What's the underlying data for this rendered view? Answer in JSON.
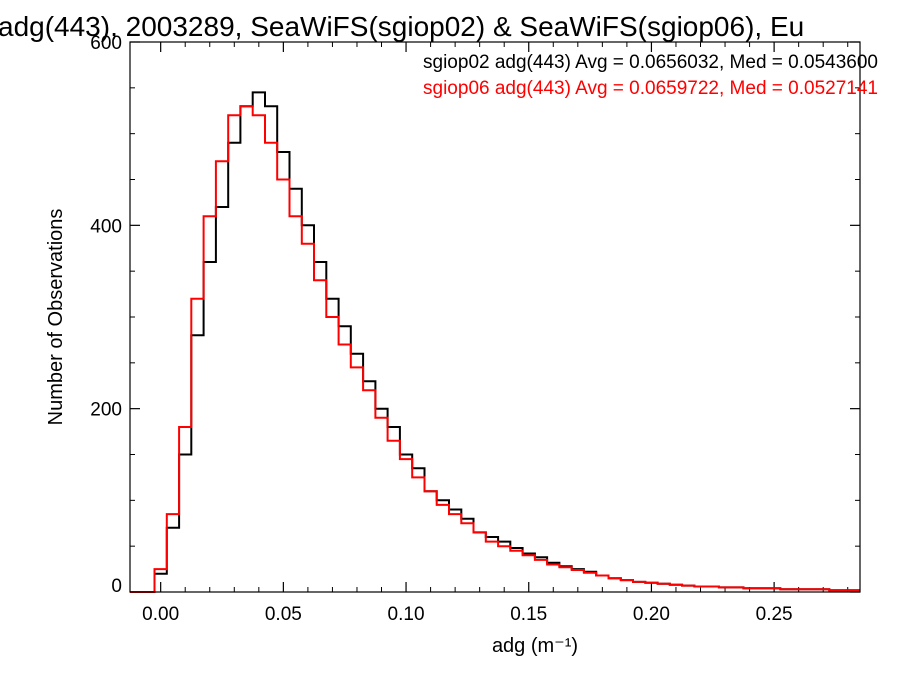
{
  "chart_data": {
    "type": "line",
    "title": "adg(443), 2003289, SeaWiFS(sgiop02) & SeaWiFS(sgiop06), Eu",
    "xlabel": "adg (m⁻¹)",
    "ylabel": "Number of Observations",
    "xlim": [
      -0.0125,
      0.285
    ],
    "ylim": [
      0,
      600
    ],
    "x_ticks": [
      0.0,
      0.05,
      0.1,
      0.15,
      0.2,
      0.25
    ],
    "x_tick_labels": [
      "0.00",
      "0.05",
      "0.10",
      "0.15",
      "0.20",
      "0.25"
    ],
    "y_ticks": [
      0,
      200,
      400,
      600
    ],
    "y_tick_labels": [
      "0",
      "200",
      "400",
      "600"
    ],
    "grid": false,
    "legend_position": "top-right",
    "x": [
      -0.01,
      -0.005,
      0.0,
      0.005,
      0.01,
      0.015,
      0.02,
      0.025,
      0.03,
      0.035,
      0.04,
      0.045,
      0.05,
      0.055,
      0.06,
      0.065,
      0.07,
      0.075,
      0.08,
      0.085,
      0.09,
      0.095,
      0.1,
      0.105,
      0.11,
      0.115,
      0.12,
      0.125,
      0.13,
      0.135,
      0.14,
      0.145,
      0.15,
      0.155,
      0.16,
      0.165,
      0.17,
      0.175,
      0.18,
      0.185,
      0.19,
      0.195,
      0.2,
      0.205,
      0.21,
      0.215,
      0.22,
      0.225,
      0.23,
      0.235,
      0.24,
      0.245,
      0.25,
      0.255,
      0.26,
      0.265,
      0.27,
      0.275,
      0.28,
      0.285
    ],
    "series": [
      {
        "name": "sgiop02",
        "color": "#000000",
        "values": [
          0,
          0,
          20,
          70,
          150,
          280,
          360,
          420,
          490,
          530,
          545,
          530,
          480,
          440,
          400,
          360,
          320,
          290,
          260,
          230,
          200,
          180,
          150,
          135,
          110,
          100,
          90,
          80,
          65,
          60,
          55,
          48,
          42,
          38,
          32,
          28,
          25,
          22,
          18,
          15,
          13,
          11,
          10,
          9,
          8,
          7,
          6,
          6,
          5,
          5,
          4,
          4,
          4,
          3,
          3,
          3,
          3,
          2,
          2,
          2
        ]
      },
      {
        "name": "sgiop06",
        "color": "#ff0000",
        "values": [
          0,
          0,
          25,
          85,
          180,
          320,
          410,
          470,
          520,
          530,
          520,
          490,
          450,
          410,
          380,
          340,
          300,
          270,
          245,
          220,
          190,
          165,
          145,
          125,
          110,
          95,
          85,
          75,
          65,
          55,
          50,
          45,
          40,
          35,
          30,
          27,
          24,
          21,
          18,
          15,
          13,
          11,
          10,
          9,
          8,
          7,
          6,
          6,
          5,
          5,
          4,
          4,
          4,
          3,
          3,
          3,
          3,
          2,
          2,
          2
        ]
      }
    ],
    "annotations": [
      {
        "text": "sgiop02 adg(443) Avg = 0.0656032, Med = 0.0543600",
        "color": "#000000"
      },
      {
        "text": "sgiop06 adg(443) Avg = 0.0659722, Med = 0.0527141",
        "color": "#ff0000"
      }
    ]
  }
}
